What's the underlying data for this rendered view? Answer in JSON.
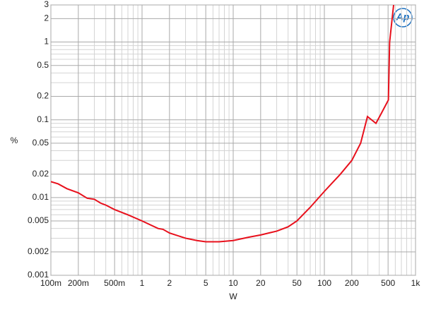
{
  "chart_data": {
    "type": "line",
    "logo": "Ap",
    "xlabel": "W",
    "ylabel": "%",
    "xlog": true,
    "ylog": true,
    "grid": true,
    "xlim": [
      0.1,
      1000
    ],
    "ylim": [
      0.001,
      3
    ],
    "xticks": [
      {
        "value": 0.1,
        "label": "100m"
      },
      {
        "value": 0.2,
        "label": "200m"
      },
      {
        "value": 0.5,
        "label": "500m"
      },
      1,
      2,
      5,
      10,
      20,
      50,
      100,
      200,
      500,
      {
        "value": 1000,
        "label": "1k"
      }
    ],
    "yticks": [
      0.001,
      0.002,
      0.005,
      0.01,
      0.02,
      0.05,
      0.1,
      0.2,
      0.5,
      1,
      2,
      3
    ],
    "x_minor_ticks": [
      0.3,
      0.4,
      0.6,
      0.7,
      0.8,
      0.9,
      3,
      4,
      6,
      7,
      8,
      9,
      30,
      40,
      60,
      70,
      80,
      90,
      300,
      400,
      600,
      700,
      800,
      900
    ],
    "y_minor_ticks": [
      0.003,
      0.004,
      0.006,
      0.007,
      0.008,
      0.009,
      0.03,
      0.04,
      0.06,
      0.07,
      0.08,
      0.09,
      0.3,
      0.4,
      0.6,
      0.7,
      0.8,
      0.9
    ],
    "series": [
      {
        "color": "#e8101c",
        "x": [
          0.1,
          0.12,
          0.15,
          0.2,
          0.25,
          0.3,
          0.35,
          0.4,
          0.5,
          0.7,
          1,
          1.5,
          1.7,
          2,
          3,
          4,
          5,
          7,
          10,
          15,
          20,
          30,
          40,
          50,
          70,
          100,
          150,
          200,
          250,
          297,
          368,
          420,
          504,
          520,
          575
        ],
        "values": [
          0.016,
          0.015,
          0.013,
          0.0115,
          0.0098,
          0.0095,
          0.0085,
          0.008,
          0.007,
          0.006,
          0.005,
          0.004,
          0.0039,
          0.0035,
          0.003,
          0.0028,
          0.0027,
          0.0027,
          0.0028,
          0.0031,
          0.0033,
          0.0037,
          0.0042,
          0.005,
          0.0075,
          0.012,
          0.02,
          0.03,
          0.05,
          0.11,
          0.09,
          0.12,
          0.18,
          1.0,
          3.0
        ]
      }
    ]
  }
}
